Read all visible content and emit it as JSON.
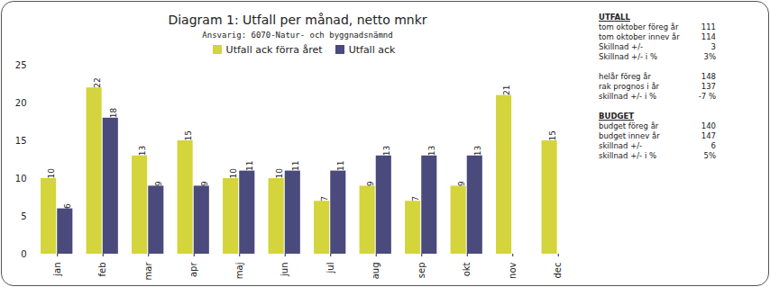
{
  "chart_data": {
    "type": "bar",
    "title": "Diagram 1: Utfall per månad, netto mnkr",
    "subtitle": "Ansvarig: 6070-Natur- och byggnadsnämnd",
    "categories": [
      "jan",
      "feb",
      "mar",
      "apr",
      "maj",
      "jun",
      "jul",
      "aug",
      "sep",
      "okt",
      "nov",
      "dec"
    ],
    "series": [
      {
        "name": "Utfall ack förra året",
        "color": "#d4d43c",
        "values": [
          10,
          22,
          13,
          15,
          10,
          10,
          7,
          9,
          7,
          9,
          21,
          15
        ]
      },
      {
        "name": "Utfall ack",
        "color": "#4a4a7c",
        "values": [
          6,
          18,
          9,
          9,
          11,
          11,
          11,
          13,
          13,
          13,
          null,
          null
        ]
      }
    ],
    "ylim": [
      0,
      25
    ],
    "yticks": [
      0,
      5,
      10,
      15,
      20,
      25
    ],
    "grid": false,
    "data_labels": true,
    "legend": "top",
    "annotations": [
      {
        "title": "UTFALL",
        "rows": [
          {
            "label": "tom oktober föreg år",
            "value": "111"
          },
          {
            "label": "tom oktober innev år",
            "value": "114"
          },
          {
            "label": "Skillnad +/-",
            "value": "3"
          },
          {
            "label": "Skillnad +/- i %",
            "value": "3%"
          }
        ]
      },
      {
        "rows": [
          {
            "label": "helår föreg år",
            "value": "148"
          },
          {
            "label": "rak prognos i år",
            "value": "137"
          },
          {
            "label": "skillnad +/- i %",
            "value": "-7 %"
          }
        ]
      },
      {
        "title": "BUDGET",
        "rows": [
          {
            "label": "budget föreg år",
            "value": "140"
          },
          {
            "label": "budget innev år",
            "value": "147"
          },
          {
            "label": "skillnad +/-",
            "value": "6"
          },
          {
            "label": "skillnad +/- i %",
            "value": "5%"
          }
        ]
      }
    ]
  }
}
